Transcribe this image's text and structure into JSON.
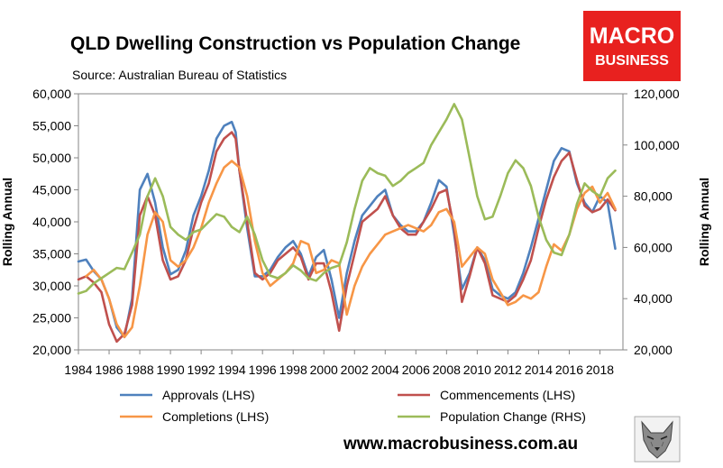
{
  "chart_data": {
    "type": "line",
    "title": "QLD Dwelling Construction vs Population Change",
    "subtitle": "Source: Australian Bureau of Statistics",
    "ylabel_left": "Rolling Annual",
    "ylabel_right": "Rolling Annual",
    "ylim_left": [
      20000,
      60000
    ],
    "ylim_right": [
      20000,
      120000
    ],
    "yticks_left": [
      "20,000",
      "25,000",
      "30,000",
      "35,000",
      "40,000",
      "45,000",
      "50,000",
      "55,000",
      "60,000"
    ],
    "yticks_right": [
      "20,000",
      "40,000",
      "60,000",
      "80,000",
      "100,000",
      "120,000"
    ],
    "xlim": [
      1984,
      2019.5
    ],
    "xticks": [
      "1984",
      "1986",
      "1988",
      "1990",
      "1992",
      "1994",
      "1996",
      "1998",
      "2000",
      "2002",
      "2004",
      "2006",
      "2008",
      "2010",
      "2012",
      "2014",
      "2016",
      "2018"
    ],
    "grid": false,
    "legend_position": "bottom",
    "series": [
      {
        "name": "Approvals (LHS)",
        "axis": "left",
        "color": "#4F81BD",
        "x": [
          1984,
          1984.5,
          1985,
          1985.5,
          1986,
          1986.5,
          1987,
          1987.5,
          1988,
          1988.5,
          1989,
          1989.5,
          1990,
          1990.5,
          1991,
          1991.5,
          1992,
          1992.5,
          1993,
          1993.5,
          1994,
          1994.25,
          1994.5,
          1995,
          1995.5,
          1996,
          1996.5,
          1997,
          1997.5,
          1998,
          1998.5,
          1999,
          1999.5,
          2000,
          2000.5,
          2001,
          2001.5,
          2002,
          2002.5,
          2003,
          2003.5,
          2004,
          2004.5,
          2005,
          2005.5,
          2006,
          2006.5,
          2007,
          2007.5,
          2008,
          2008.5,
          2009,
          2009.5,
          2010,
          2010.5,
          2011,
          2011.5,
          2012,
          2012.5,
          2013,
          2013.5,
          2014,
          2014.5,
          2015,
          2015.5,
          2016,
          2016.5,
          2017,
          2017.5,
          2018,
          2018.5,
          2019
        ],
        "values": [
          33800,
          34100,
          32300,
          31000,
          28000,
          23500,
          22000,
          28000,
          45000,
          47500,
          43000,
          36000,
          31800,
          32500,
          35500,
          41000,
          44000,
          48000,
          53000,
          55000,
          55600,
          54000,
          48000,
          39000,
          31500,
          31500,
          32500,
          34500,
          36000,
          37000,
          35000,
          31500,
          34500,
          35600,
          31000,
          25000,
          32000,
          37000,
          41000,
          42500,
          44000,
          45000,
          41000,
          39500,
          38500,
          38500,
          40000,
          43000,
          46500,
          45500,
          38000,
          29500,
          32000,
          36000,
          34000,
          29500,
          28500,
          28000,
          29000,
          32000,
          36000,
          40500,
          45000,
          49500,
          51500,
          51000,
          46000,
          43000,
          41500,
          44000,
          43000,
          35800
        ]
      },
      {
        "name": "Commencements (LHS)",
        "axis": "left",
        "color": "#C0504D",
        "x": [
          1984,
          1984.5,
          1985,
          1985.5,
          1986,
          1986.5,
          1987,
          1987.5,
          1988,
          1988.5,
          1989,
          1989.5,
          1990,
          1990.5,
          1991,
          1991.5,
          1992,
          1992.5,
          1993,
          1993.5,
          1994,
          1994.25,
          1994.5,
          1995,
          1995.5,
          1996,
          1996.5,
          1997,
          1997.5,
          1998,
          1998.5,
          1999,
          1999.5,
          2000,
          2000.5,
          2001,
          2001.5,
          2002,
          2002.5,
          2003,
          2003.5,
          2004,
          2004.5,
          2005,
          2005.5,
          2006,
          2006.5,
          2007,
          2007.5,
          2008,
          2008.5,
          2009,
          2009.5,
          2010,
          2010.5,
          2011,
          2011.5,
          2012,
          2012.5,
          2013,
          2013.5,
          2014,
          2014.5,
          2015,
          2015.5,
          2016,
          2016.5,
          2017,
          2017.5,
          2018,
          2018.5,
          2019
        ],
        "values": [
          31000,
          31500,
          30500,
          29000,
          24000,
          21300,
          22500,
          27000,
          41000,
          44000,
          41000,
          34000,
          31000,
          31500,
          34000,
          39000,
          43000,
          46000,
          51000,
          53000,
          54000,
          53000,
          48000,
          40000,
          32000,
          31000,
          32000,
          34000,
          35000,
          36000,
          34500,
          31000,
          33500,
          33500,
          29000,
          23000,
          30000,
          35000,
          40000,
          41000,
          42000,
          44000,
          41000,
          39000,
          38000,
          38000,
          40000,
          42000,
          44500,
          45000,
          39000,
          27500,
          31500,
          36000,
          33500,
          28500,
          28000,
          27500,
          28500,
          31000,
          34000,
          39000,
          43500,
          47000,
          49500,
          50800,
          46500,
          42500,
          41500,
          42000,
          43500,
          41800
        ]
      },
      {
        "name": "Completions (LHS)",
        "axis": "left",
        "color": "#F79646",
        "x": [
          1984.5,
          1985,
          1985.5,
          1986,
          1986.5,
          1987,
          1987.5,
          1988,
          1988.5,
          1989,
          1989.5,
          1990,
          1990.5,
          1991,
          1991.5,
          1992,
          1992.5,
          1993,
          1993.5,
          1994,
          1994.25,
          1994.5,
          1995,
          1995.5,
          1996,
          1996.5,
          1997,
          1997.5,
          1998,
          1998.5,
          1999,
          1999.5,
          2000,
          2000.5,
          2001,
          2001.5,
          2002,
          2002.5,
          2003,
          2003.5,
          2004,
          2004.5,
          2005,
          2005.5,
          2006,
          2006.5,
          2007,
          2007.5,
          2008,
          2008.5,
          2009,
          2009.5,
          2010,
          2010.5,
          2011,
          2011.5,
          2012,
          2012.5,
          2013,
          2013.5,
          2014,
          2014.5,
          2015,
          2015.5,
          2016,
          2016.5,
          2017,
          2017.5,
          2018,
          2018.5,
          2019
        ],
        "values": [
          31500,
          32500,
          31000,
          28000,
          24000,
          22000,
          23500,
          30000,
          38000,
          41500,
          40000,
          34000,
          33000,
          34000,
          36000,
          39000,
          43000,
          46000,
          48500,
          49500,
          49000,
          48500,
          44000,
          37000,
          32000,
          30000,
          31000,
          32000,
          33500,
          37000,
          36500,
          32000,
          32500,
          34000,
          33500,
          25500,
          30000,
          33000,
          35000,
          36500,
          38000,
          38500,
          39000,
          39500,
          39000,
          38500,
          39500,
          41500,
          42000,
          40000,
          33000,
          34500,
          36000,
          35000,
          31000,
          29000,
          27000,
          27500,
          28500,
          28000,
          29000,
          33000,
          36500,
          35500,
          38000,
          42000,
          44500,
          45500,
          43000,
          44500,
          42000
        ]
      },
      {
        "name": "Population Change (RHS)",
        "axis": "right",
        "color": "#9BBB59",
        "x": [
          1984,
          1984.5,
          1985,
          1985.5,
          1986,
          1986.5,
          1987,
          1987.5,
          1988,
          1988.5,
          1989,
          1989.5,
          1990,
          1990.5,
          1991,
          1991.5,
          1992,
          1992.5,
          1993,
          1993.5,
          1994,
          1994.5,
          1995,
          1995.5,
          1996,
          1996.5,
          1997,
          1997.5,
          1998,
          1998.5,
          1999,
          1999.5,
          2000,
          2000.5,
          2001,
          2001.5,
          2002,
          2002.5,
          2003,
          2003.5,
          2004,
          2004.5,
          2005,
          2005.5,
          2006,
          2006.5,
          2007,
          2007.5,
          2008,
          2008.5,
          2009,
          2009.5,
          2010,
          2010.5,
          2011,
          2011.5,
          2012,
          2012.5,
          2013,
          2013.5,
          2014,
          2014.5,
          2015,
          2015.5,
          2016,
          2016.5,
          2017,
          2017.5,
          2018,
          2018.5,
          2019
        ],
        "values": [
          42000,
          43000,
          46000,
          48000,
          50000,
          52000,
          51500,
          58000,
          65000,
          80000,
          87000,
          80000,
          68000,
          65000,
          63000,
          66000,
          67000,
          70000,
          73000,
          72000,
          68000,
          66000,
          72000,
          65000,
          55000,
          49000,
          48000,
          50000,
          53000,
          51000,
          48000,
          47000,
          50000,
          52000,
          53000,
          62000,
          75000,
          86000,
          91000,
          89000,
          88000,
          84000,
          86000,
          89000,
          91000,
          93000,
          100000,
          105000,
          110000,
          116000,
          110000,
          95000,
          80000,
          71000,
          72000,
          80000,
          89000,
          94000,
          91000,
          84000,
          72000,
          63000,
          58000,
          57000,
          65000,
          77000,
          85000,
          82000,
          80000,
          87000,
          90000
        ]
      }
    ]
  },
  "branding": {
    "logo_line1": "MACRO",
    "logo_line2": "BUSINESS",
    "logo_color": "#E8211F",
    "website": "www.macrobusiness.com.au",
    "mascot_icon": "wolf-icon"
  }
}
